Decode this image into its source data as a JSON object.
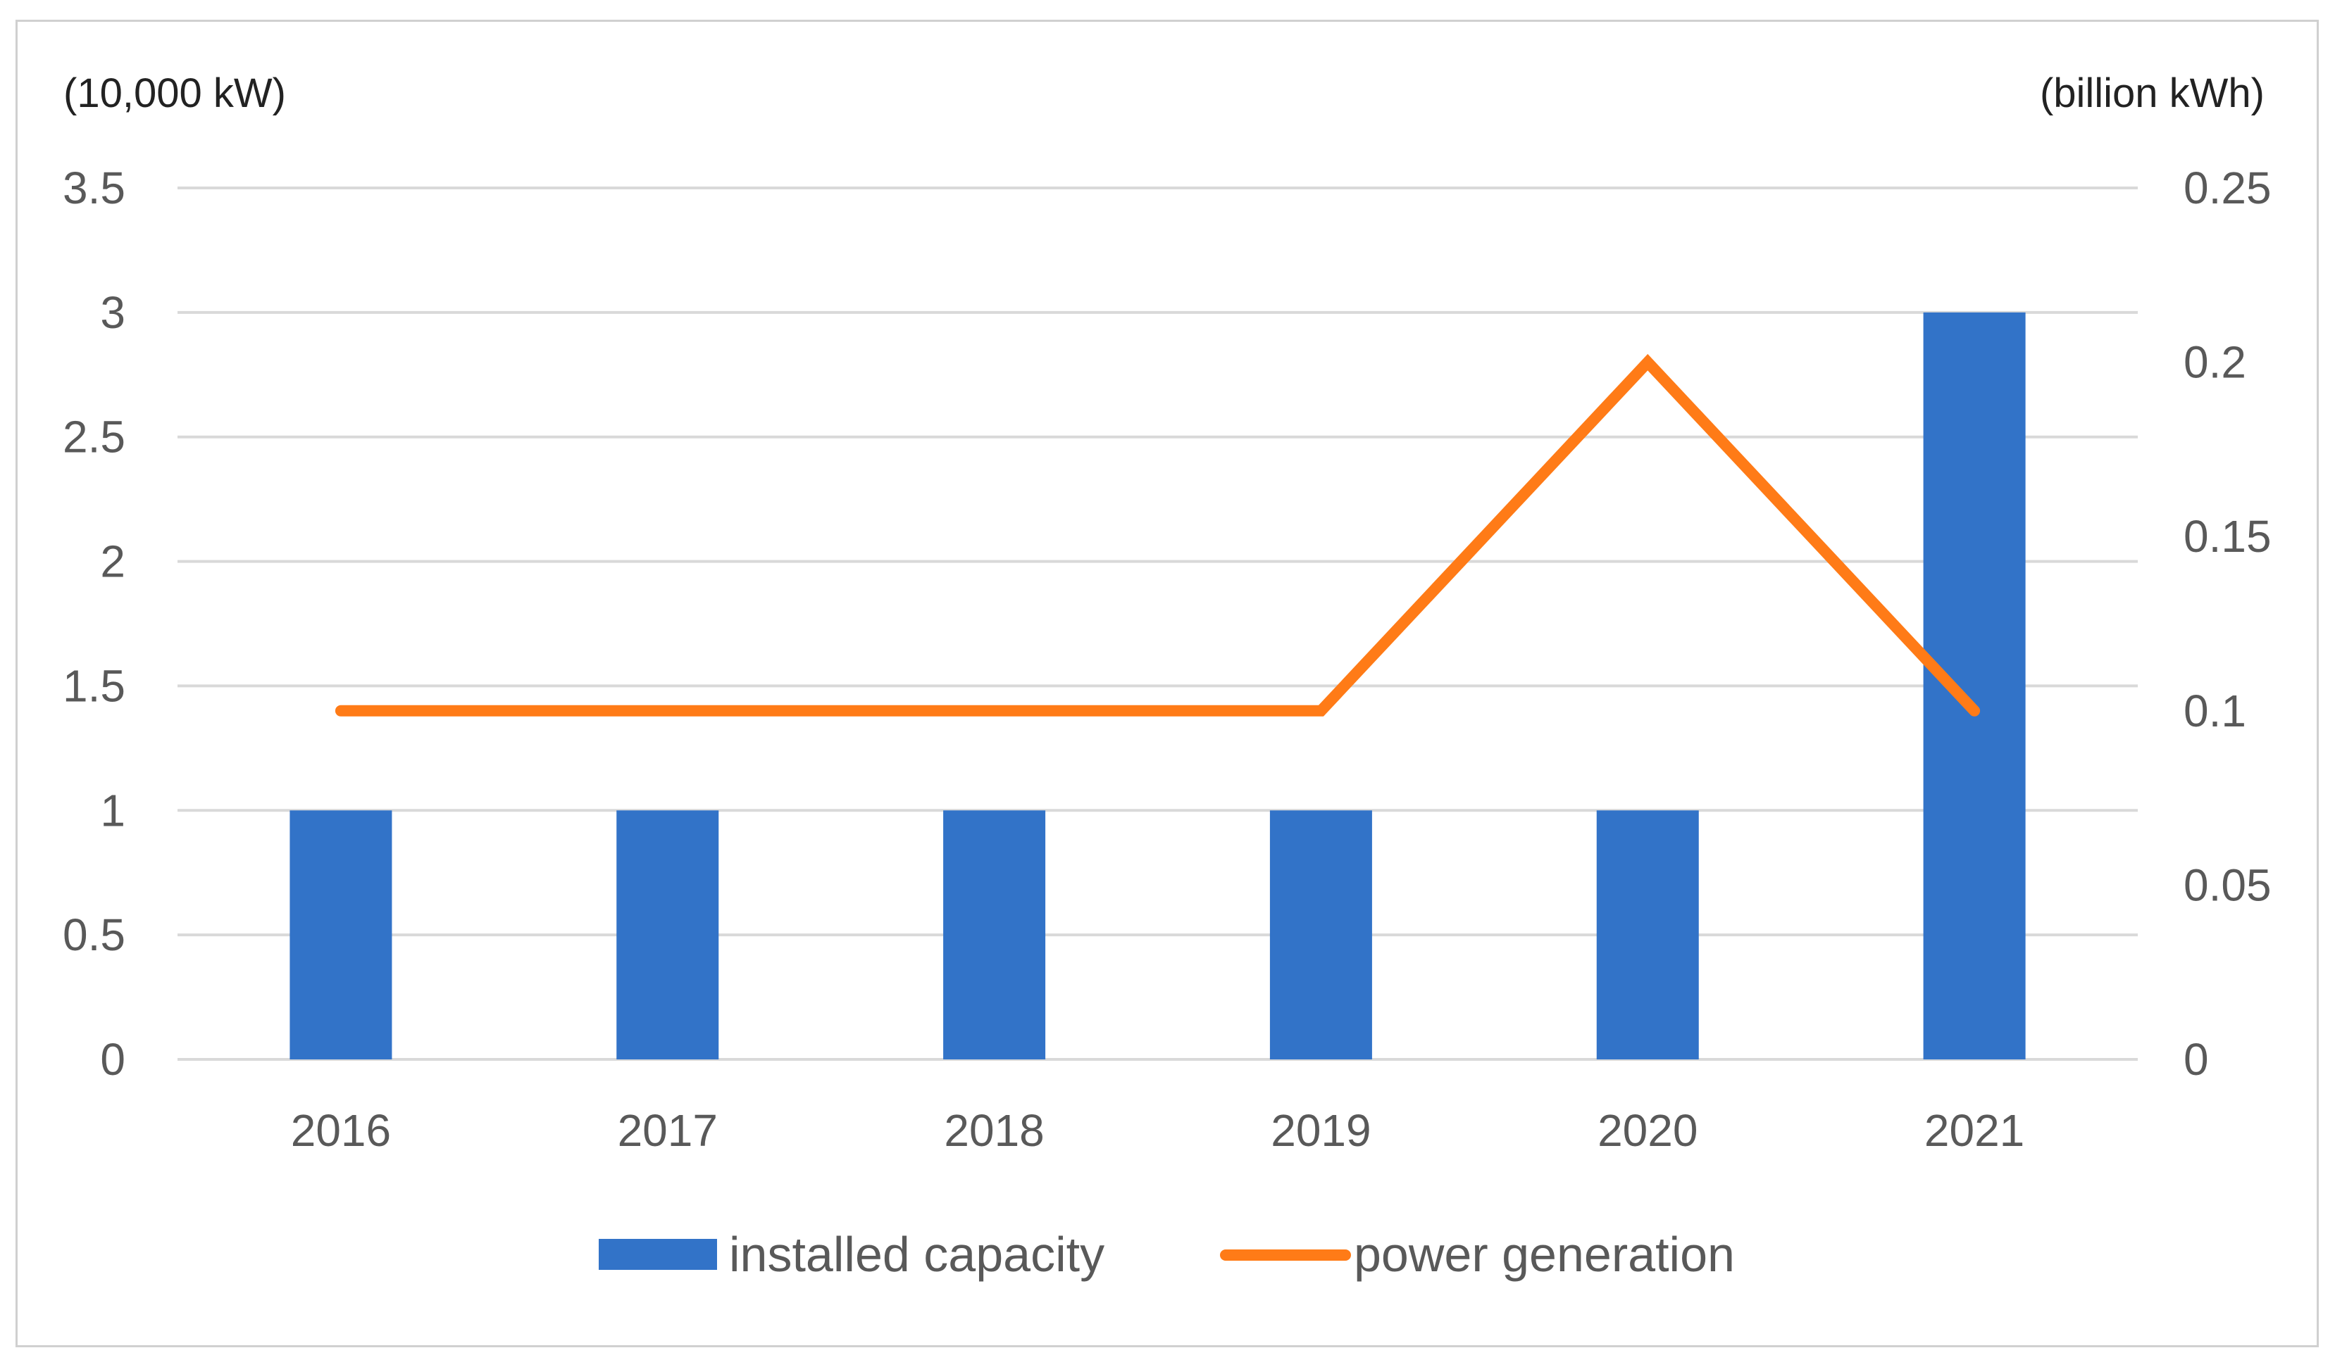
{
  "chart_data": {
    "type": "bar+line",
    "categories": [
      "2016",
      "2017",
      "2018",
      "2019",
      "2020",
      "2021"
    ],
    "series": [
      {
        "name": "installed capacity",
        "kind": "bar",
        "axis": "left",
        "color": "#3273C8",
        "values": [
          1,
          1,
          1,
          1,
          1,
          3
        ]
      },
      {
        "name": "power generation",
        "kind": "line",
        "axis": "right",
        "color": "#FF7B17",
        "values": [
          0.1,
          0.1,
          0.1,
          0.1,
          0.2,
          0.1
        ]
      }
    ],
    "left_axis": {
      "unit_label": "(10,000 kW)",
      "ylim": [
        0,
        3.5
      ],
      "ticks": [
        "0",
        "0.5",
        "1",
        "1.5",
        "2",
        "2.5",
        "3",
        "3.5"
      ],
      "tick_values": [
        0,
        0.5,
        1,
        1.5,
        2,
        2.5,
        3,
        3.5
      ]
    },
    "right_axis": {
      "unit_label": "(billion kWh)",
      "ylim": [
        0,
        0.25
      ],
      "ticks": [
        "0",
        "0.05",
        "0.1",
        "0.15",
        "0.2",
        "0.25"
      ],
      "tick_values": [
        0,
        0.05,
        0.1,
        0.15,
        0.2,
        0.25
      ]
    },
    "grid": true,
    "legend_position": "bottom",
    "gridline_color": "#d9d9d9"
  }
}
